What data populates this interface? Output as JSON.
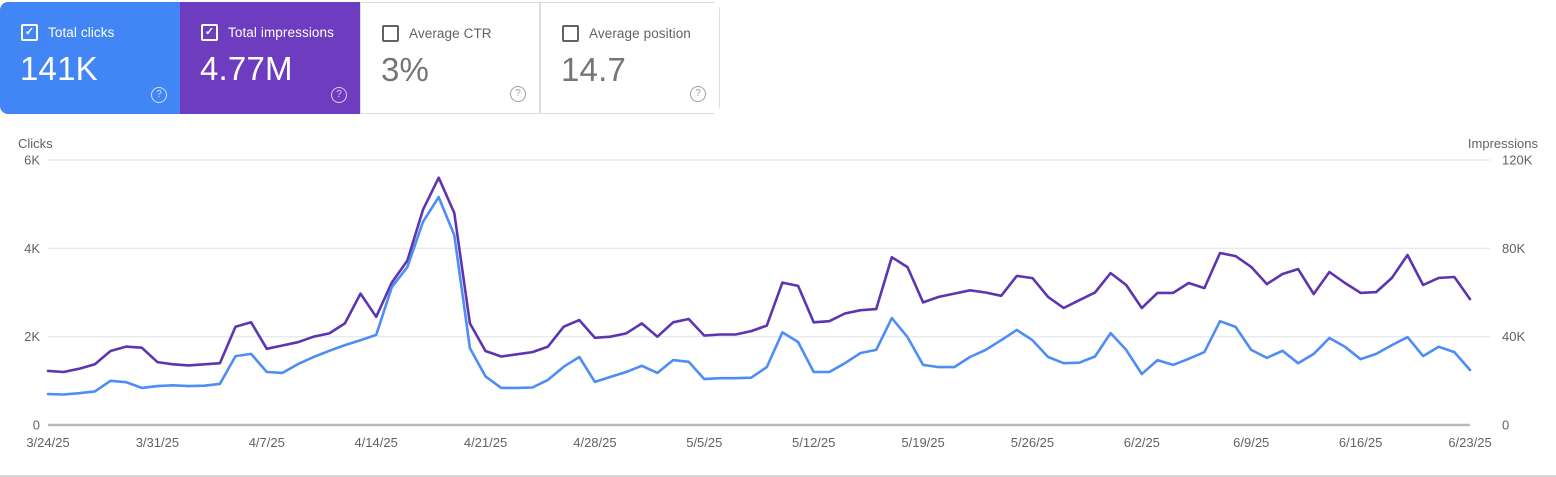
{
  "cards": [
    {
      "label": "Total clicks",
      "value": "141K",
      "checked": true,
      "bg": "#4285f4",
      "border": "",
      "label_color": "#ffffff",
      "value_color": "#ffffff",
      "checkbox_color": "#ffffff",
      "help_color": "rgba(255,255,255,0.75)",
      "help_glyph": "?",
      "check_glyph": "✓"
    },
    {
      "label": "Total impressions",
      "value": "4.77M",
      "checked": true,
      "bg": "#6e3cbe",
      "border": "",
      "label_color": "#ffffff",
      "value_color": "#ffffff",
      "checkbox_color": "#ffffff",
      "help_color": "rgba(255,255,255,0.75)",
      "help_glyph": "?",
      "check_glyph": "✓"
    },
    {
      "label": "Average CTR",
      "value": "3%",
      "checked": false,
      "bg": "#ffffff",
      "border": "#dadce0",
      "label_color": "#5f6368",
      "value_color": "#757575",
      "checkbox_color": "#5f6368",
      "help_color": "#9aa0a6",
      "help_glyph": "?",
      "check_glyph": ""
    },
    {
      "label": "Average position",
      "value": "14.7",
      "checked": false,
      "bg": "#ffffff",
      "border": "#dadce0",
      "label_color": "#5f6368",
      "value_color": "#757575",
      "checkbox_color": "#5f6368",
      "help_color": "#9aa0a6",
      "help_glyph": "?",
      "check_glyph": ""
    }
  ],
  "chart_data": {
    "type": "line",
    "start_date": "3/24/25",
    "end_date": "6/23/25",
    "interval": "daily",
    "grid": "horizontal",
    "grid_color": "#e9eaed",
    "axis_line_color": "#b7bbbf",
    "tick_text_color": "#5f6368",
    "x_ticks": [
      "3/24/25",
      "3/31/25",
      "4/7/25",
      "4/14/25",
      "4/21/25",
      "4/28/25",
      "5/5/25",
      "5/12/25",
      "5/19/25",
      "5/26/25",
      "6/2/25",
      "6/9/25",
      "6/16/25",
      "6/23/25"
    ],
    "left_axis": {
      "label": "Clicks",
      "ticks": [
        "0",
        "2K",
        "4K",
        "6K"
      ],
      "max": 6000
    },
    "right_axis": {
      "label": "Impressions",
      "ticks": [
        "0",
        "40K",
        "80K",
        "120K"
      ],
      "max": 120000
    },
    "series": [
      {
        "name": "Impressions",
        "axis": "right",
        "color": "#5e35b1",
        "values": [
          24500,
          24000,
          25500,
          27500,
          33500,
          35500,
          35000,
          28500,
          27500,
          27000,
          27500,
          28000,
          44500,
          46500,
          34500,
          36000,
          37500,
          40000,
          41500,
          46000,
          59500,
          49000,
          64500,
          74500,
          97500,
          112000,
          96000,
          46000,
          33500,
          31000,
          32000,
          33000,
          35500,
          44500,
          47500,
          39500,
          40000,
          41500,
          46000,
          40000,
          46500,
          48000,
          40500,
          41000,
          41000,
          42500,
          45000,
          64500,
          63000,
          46500,
          47000,
          50500,
          52000,
          52500,
          76000,
          71500,
          55500,
          58000,
          59500,
          61000,
          60000,
          58500,
          67500,
          66500,
          58000,
          53000,
          56500,
          60000,
          68800,
          63400,
          53000,
          59800,
          59800,
          64300,
          62000,
          77900,
          76500,
          71600,
          63800,
          68400,
          70600,
          59300,
          69300,
          64300,
          59800,
          60200,
          66600,
          77000,
          63400,
          66600,
          67000,
          57000
        ]
      },
      {
        "name": "Clicks",
        "axis": "left",
        "color": "#4e8df6",
        "values": [
          700,
          690,
          720,
          760,
          1000,
          970,
          840,
          880,
          900,
          880,
          890,
          930,
          1560,
          1610,
          1200,
          1180,
          1380,
          1540,
          1680,
          1810,
          1920,
          2040,
          3120,
          3580,
          4600,
          5160,
          4300,
          1740,
          1100,
          840,
          840,
          850,
          1020,
          1320,
          1540,
          975,
          1090,
          1200,
          1340,
          1180,
          1470,
          1430,
          1040,
          1060,
          1060,
          1070,
          1310,
          2100,
          1880,
          1200,
          1200,
          1400,
          1630,
          1700,
          2420,
          1990,
          1360,
          1310,
          1310,
          1540,
          1700,
          1920,
          2150,
          1920,
          1540,
          1400,
          1410,
          1550,
          2080,
          1700,
          1155,
          1470,
          1360,
          1500,
          1650,
          2350,
          2220,
          1700,
          1520,
          1680,
          1400,
          1610,
          1970,
          1770,
          1490,
          1610,
          1810,
          1990,
          1560,
          1770,
          1650,
          1245
        ]
      }
    ]
  }
}
